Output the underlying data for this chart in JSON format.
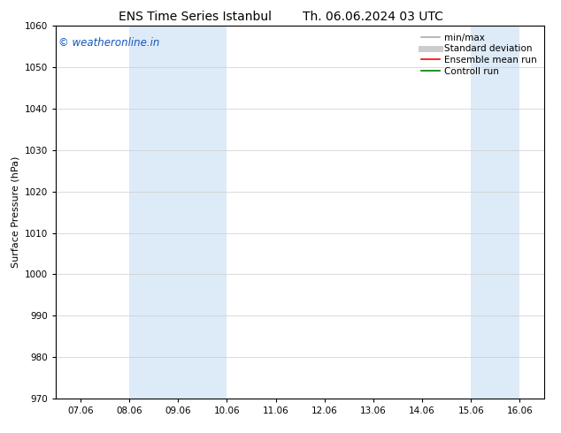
{
  "title_left": "ENS Time Series Istanbul",
  "title_right": "Th. 06.06.2024 03 UTC",
  "ylabel": "Surface Pressure (hPa)",
  "ylim": [
    970,
    1060
  ],
  "yticks": [
    970,
    980,
    990,
    1000,
    1010,
    1020,
    1030,
    1040,
    1050,
    1060
  ],
  "xtick_labels": [
    "07.06",
    "08.06",
    "09.06",
    "10.06",
    "11.06",
    "12.06",
    "13.06",
    "14.06",
    "15.06",
    "16.06"
  ],
  "xtick_positions": [
    0,
    1,
    2,
    3,
    4,
    5,
    6,
    7,
    8,
    9
  ],
  "xlim": [
    -0.5,
    9.5
  ],
  "shade_bands": [
    {
      "x_start": 1,
      "x_end": 3,
      "color": "#ddeaf7"
    },
    {
      "x_start": 8,
      "x_end": 9,
      "color": "#ddeaf7"
    }
  ],
  "watermark_text": "© weatheronline.in",
  "watermark_color": "#1155bb",
  "watermark_fontsize": 8.5,
  "legend_entries": [
    {
      "label": "min/max",
      "color": "#aaaaaa",
      "linestyle": "-",
      "linewidth": 1.2
    },
    {
      "label": "Standard deviation",
      "color": "#cccccc",
      "linestyle": "-",
      "linewidth": 5
    },
    {
      "label": "Ensemble mean run",
      "color": "red",
      "linestyle": "-",
      "linewidth": 1.2
    },
    {
      "label": "Controll run",
      "color": "green",
      "linestyle": "-",
      "linewidth": 1.2
    }
  ],
  "bg_color": "#ffffff",
  "plot_bg_color": "#ffffff",
  "grid_color": "#cccccc",
  "title_fontsize": 10,
  "ylabel_fontsize": 8,
  "tick_fontsize": 7.5,
  "legend_fontsize": 7.5
}
